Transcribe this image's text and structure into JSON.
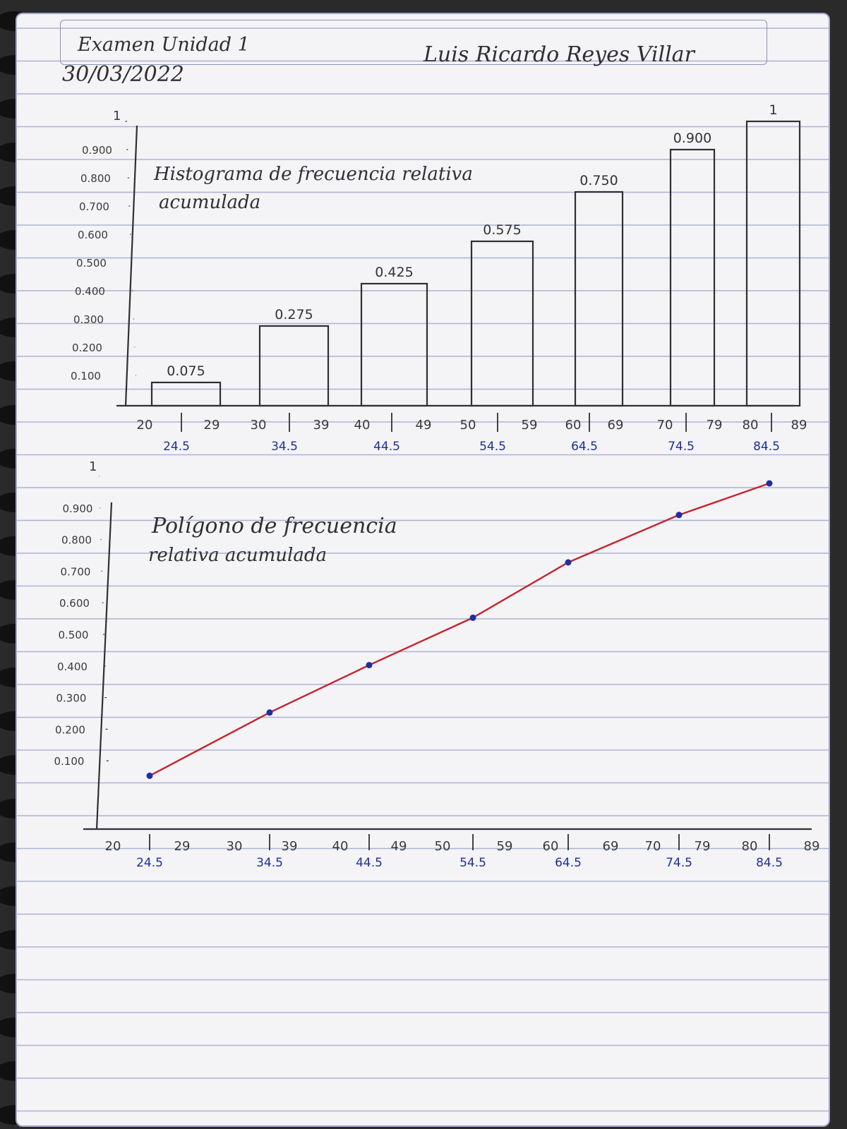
{
  "header": {
    "title": "Examen Unidad 1",
    "date": "30/03/2022",
    "student": "Luis Ricardo Reyes Villar"
  },
  "colors": {
    "ink": "#2f2f34",
    "blue_ink": "#1e2f9e",
    "red_ink": "#c4242c",
    "paper": "#f4f3f6",
    "rule_line": "#aeb3d0"
  },
  "chart_data": [
    {
      "type": "bar",
      "title": "Histograma de frecuencia relativa",
      "subtitle": "acumulada",
      "ylim": [
        0,
        1
      ],
      "y_ticks": [
        "0.100",
        "0.200",
        "0.300",
        "0.400",
        "0.500",
        "0.600",
        "0.700",
        "0.800",
        "0.900",
        "1"
      ],
      "x_tick_labels": [
        "20",
        "29",
        "30",
        "39",
        "40",
        "49",
        "50",
        "59",
        "60",
        "69",
        "70",
        "79",
        "80",
        "89"
      ],
      "categories": [
        "24.5",
        "34.5",
        "44.5",
        "54.5",
        "64.5",
        "74.5",
        "84.5"
      ],
      "values": [
        0.075,
        0.275,
        0.425,
        0.575,
        0.75,
        0.9,
        1
      ],
      "value_labels": [
        "0.075",
        "0.275",
        "0.425",
        "0.575",
        "0.750",
        "0.900",
        "1"
      ]
    },
    {
      "type": "line",
      "title": "Polígono de frecuencia",
      "subtitle": "relativa acumulada",
      "ylim": [
        0,
        1
      ],
      "y_ticks": [
        "0.100",
        "0.200",
        "0.300",
        "0.400",
        "0.500",
        "0.600",
        "0.700",
        "0.800",
        "0.900",
        "1"
      ],
      "x_tick_labels": [
        "20",
        "29",
        "30",
        "39",
        "40",
        "49",
        "50",
        "59",
        "60",
        "69",
        "70",
        "79",
        "80",
        "89"
      ],
      "x": [
        "24.5",
        "34.5",
        "44.5",
        "54.5",
        "64.5",
        "74.5",
        "84.5"
      ],
      "values": [
        0.075,
        0.275,
        0.425,
        0.575,
        0.75,
        0.9,
        1
      ]
    }
  ]
}
